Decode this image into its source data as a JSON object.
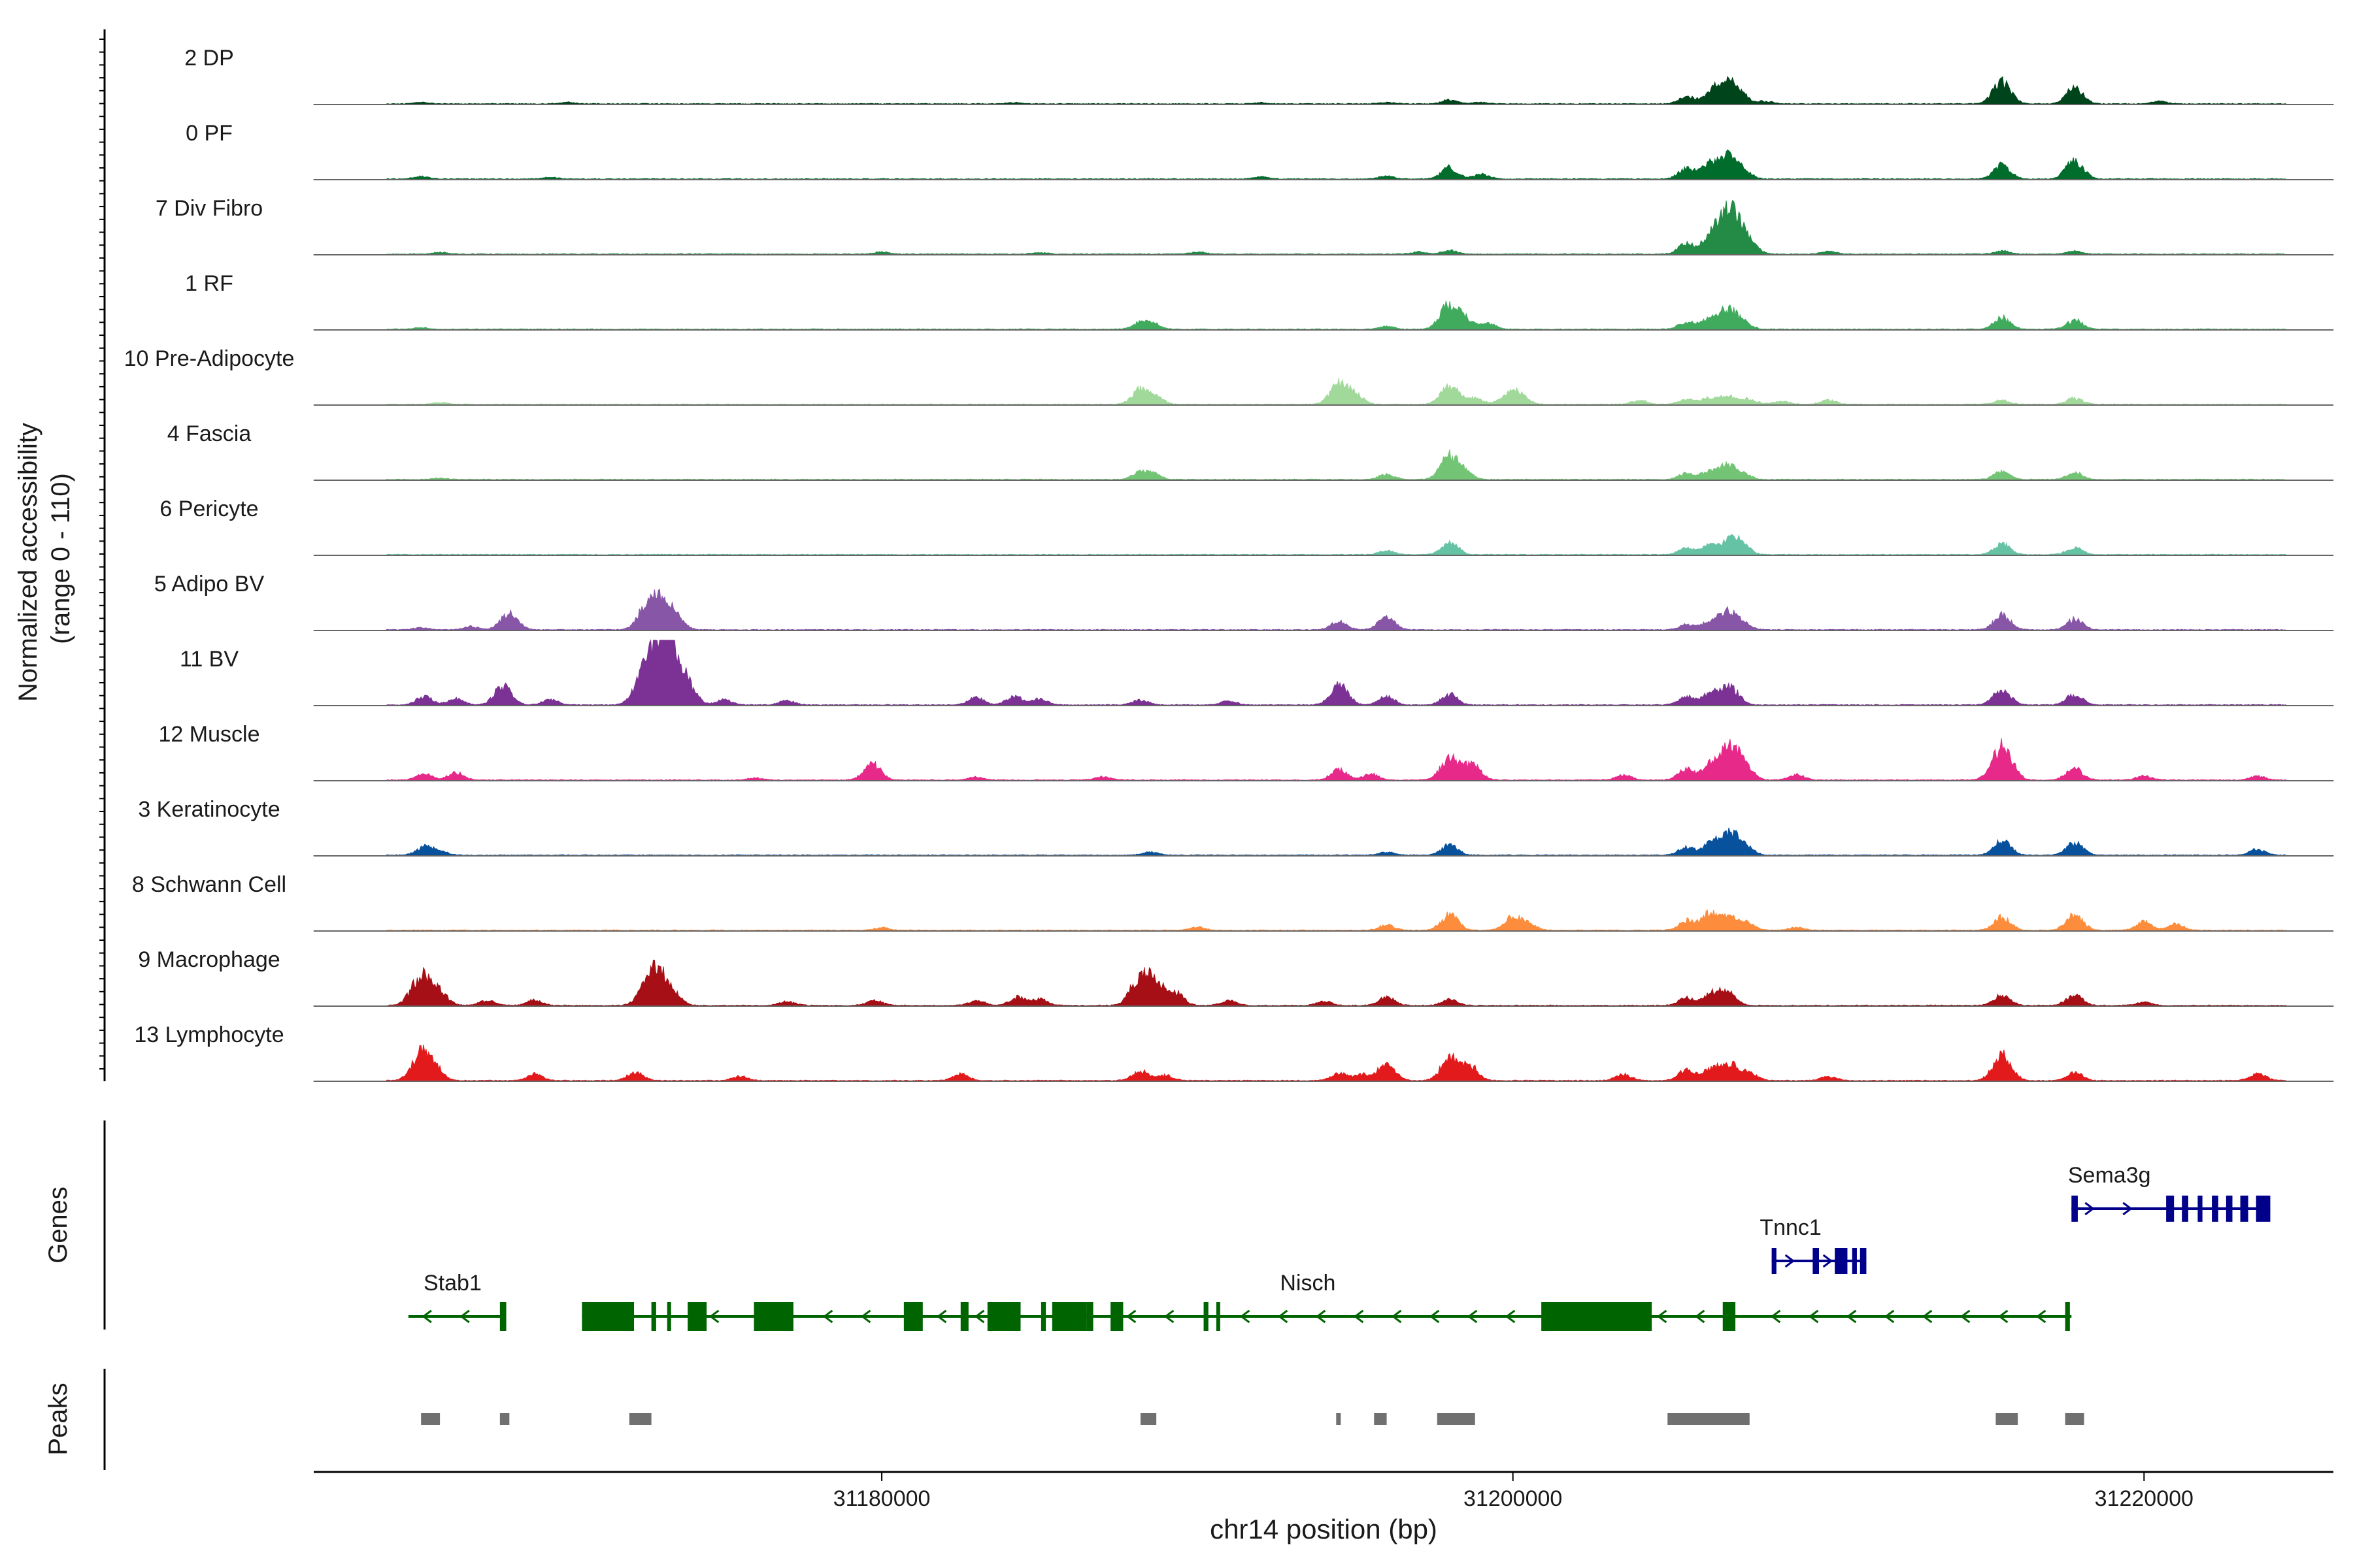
{
  "chart_data": {
    "type": "area",
    "x_axis": {
      "label": "chr14 position (bp)",
      "range": [
        31162000,
        31226000
      ],
      "ticks": [
        31180000,
        31200000,
        31220000
      ],
      "tick_labels": [
        "31180000",
        "31200000",
        "31220000"
      ]
    },
    "y_axis": {
      "label_line1": "Normalized accessibility",
      "label_line2": "(range 0 - 110)",
      "range": [
        0,
        110
      ]
    },
    "genes_label": "Genes",
    "peaks_label": "Peaks",
    "tracks": [
      {
        "name": "2 DP",
        "color": "#00441b",
        "peaks": [
          [
            31165400,
            0.03
          ],
          [
            31170000,
            0.03
          ],
          [
            31184200,
            0.02
          ],
          [
            31192000,
            0.02
          ],
          [
            31196000,
            0.03
          ],
          [
            31198000,
            0.08
          ],
          [
            31199000,
            0.03
          ],
          [
            31205500,
            0.14
          ],
          [
            31206300,
            0.22
          ],
          [
            31206800,
            0.38
          ],
          [
            31207200,
            0.16
          ],
          [
            31208000,
            0.05
          ],
          [
            31215500,
            0.42
          ],
          [
            31217800,
            0.3
          ],
          [
            31220500,
            0.05
          ]
        ]
      },
      {
        "name": "0 PF",
        "color": "#006d2c",
        "peaks": [
          [
            31165400,
            0.05
          ],
          [
            31169500,
            0.03
          ],
          [
            31192000,
            0.04
          ],
          [
            31196000,
            0.06
          ],
          [
            31198000,
            0.22
          ],
          [
            31199000,
            0.1
          ],
          [
            31205500,
            0.2
          ],
          [
            31206200,
            0.25
          ],
          [
            31206800,
            0.45
          ],
          [
            31207300,
            0.15
          ],
          [
            31215500,
            0.26
          ],
          [
            31217800,
            0.35
          ]
        ]
      },
      {
        "name": "7 Div Fibro",
        "color": "#238b45",
        "peaks": [
          [
            31166000,
            0.03
          ],
          [
            31180000,
            0.04
          ],
          [
            31185000,
            0.03
          ],
          [
            31190000,
            0.04
          ],
          [
            31197000,
            0.04
          ],
          [
            31198000,
            0.07
          ],
          [
            31205500,
            0.2
          ],
          [
            31206300,
            0.35
          ],
          [
            31206900,
            0.85
          ],
          [
            31207500,
            0.2
          ],
          [
            31210000,
            0.05
          ],
          [
            31215500,
            0.06
          ],
          [
            31217800,
            0.06
          ]
        ]
      },
      {
        "name": "1 RF",
        "color": "#41ab5d",
        "peaks": [
          [
            31165400,
            0.03
          ],
          [
            31188200,
            0.12
          ],
          [
            31188600,
            0.1
          ],
          [
            31196000,
            0.05
          ],
          [
            31198000,
            0.48
          ],
          [
            31198500,
            0.16
          ],
          [
            31199200,
            0.12
          ],
          [
            31205500,
            0.14
          ],
          [
            31206200,
            0.18
          ],
          [
            31206800,
            0.38
          ],
          [
            31207300,
            0.12
          ],
          [
            31215500,
            0.22
          ],
          [
            31217800,
            0.18
          ]
        ]
      },
      {
        "name": "10 Pre-Adipocyte",
        "color": "#a1d99b",
        "peaks": [
          [
            31166000,
            0.04
          ],
          [
            31188200,
            0.28
          ],
          [
            31188700,
            0.12
          ],
          [
            31194500,
            0.4
          ],
          [
            31195000,
            0.18
          ],
          [
            31198000,
            0.38
          ],
          [
            31198800,
            0.12
          ],
          [
            31199800,
            0.15
          ],
          [
            31200200,
            0.2
          ],
          [
            31204000,
            0.08
          ],
          [
            31205500,
            0.1
          ],
          [
            31206200,
            0.12
          ],
          [
            31206800,
            0.16
          ],
          [
            31207500,
            0.1
          ],
          [
            31208500,
            0.06
          ],
          [
            31210000,
            0.08
          ],
          [
            31215500,
            0.08
          ],
          [
            31217800,
            0.12
          ]
        ]
      },
      {
        "name": "4 Fascia",
        "color": "#74c476",
        "peaks": [
          [
            31166000,
            0.03
          ],
          [
            31188200,
            0.15
          ],
          [
            31188600,
            0.1
          ],
          [
            31196000,
            0.1
          ],
          [
            31198000,
            0.45
          ],
          [
            31198500,
            0.12
          ],
          [
            31205500,
            0.12
          ],
          [
            31206200,
            0.14
          ],
          [
            31206800,
            0.28
          ],
          [
            31207300,
            0.1
          ],
          [
            31215500,
            0.16
          ],
          [
            31217800,
            0.14
          ]
        ]
      },
      {
        "name": "6 Pericyte",
        "color": "#66c2a4",
        "peaks": [
          [
            31196000,
            0.08
          ],
          [
            31198000,
            0.24
          ],
          [
            31205500,
            0.12
          ],
          [
            31206200,
            0.18
          ],
          [
            31206900,
            0.3
          ],
          [
            31207300,
            0.14
          ],
          [
            31215500,
            0.2
          ],
          [
            31217800,
            0.14
          ]
        ]
      },
      {
        "name": "5 Adipo BV",
        "color": "#8856a7",
        "peaks": [
          [
            31165400,
            0.04
          ],
          [
            31167000,
            0.06
          ],
          [
            31168200,
            0.32
          ],
          [
            31172500,
            0.34
          ],
          [
            31173000,
            0.6
          ],
          [
            31173500,
            0.2
          ],
          [
            31194500,
            0.16
          ],
          [
            31196000,
            0.24
          ],
          [
            31205500,
            0.1
          ],
          [
            31206200,
            0.14
          ],
          [
            31206800,
            0.35
          ],
          [
            31207300,
            0.12
          ],
          [
            31215500,
            0.28
          ],
          [
            31217800,
            0.2
          ]
        ]
      },
      {
        "name": "11 BV",
        "color": "#7b3294",
        "peaks": [
          [
            31165500,
            0.16
          ],
          [
            31166500,
            0.12
          ],
          [
            31168000,
            0.36
          ],
          [
            31169500,
            0.1
          ],
          [
            31172400,
            0.4
          ],
          [
            31172900,
            0.98
          ],
          [
            31173300,
            0.7
          ],
          [
            31173800,
            0.4
          ],
          [
            31175000,
            0.1
          ],
          [
            31177000,
            0.08
          ],
          [
            31183000,
            0.14
          ],
          [
            31184200,
            0.16
          ],
          [
            31185000,
            0.12
          ],
          [
            31188200,
            0.1
          ],
          [
            31191000,
            0.08
          ],
          [
            31194500,
            0.38
          ],
          [
            31196000,
            0.16
          ],
          [
            31198000,
            0.2
          ],
          [
            31205500,
            0.16
          ],
          [
            31206300,
            0.26
          ],
          [
            31206900,
            0.32
          ],
          [
            31215500,
            0.3
          ],
          [
            31217800,
            0.2
          ]
        ]
      },
      {
        "name": "12 Muscle",
        "color": "#e7298a",
        "peaks": [
          [
            31165500,
            0.12
          ],
          [
            31166500,
            0.14
          ],
          [
            31176000,
            0.04
          ],
          [
            31179700,
            0.3
          ],
          [
            31183000,
            0.06
          ],
          [
            31187000,
            0.06
          ],
          [
            31194500,
            0.2
          ],
          [
            31195500,
            0.12
          ],
          [
            31198000,
            0.42
          ],
          [
            31198700,
            0.3
          ],
          [
            31203500,
            0.1
          ],
          [
            31205500,
            0.22
          ],
          [
            31206300,
            0.28
          ],
          [
            31206900,
            0.62
          ],
          [
            31207400,
            0.18
          ],
          [
            31209000,
            0.1
          ],
          [
            31215500,
            0.65
          ],
          [
            31217800,
            0.22
          ],
          [
            31220000,
            0.08
          ],
          [
            31223600,
            0.08
          ]
        ]
      },
      {
        "name": "3 Keratinocyte",
        "color": "#08519c",
        "peaks": [
          [
            31165500,
            0.16
          ],
          [
            31166000,
            0.08
          ],
          [
            31188500,
            0.06
          ],
          [
            31196000,
            0.06
          ],
          [
            31198000,
            0.2
          ],
          [
            31205500,
            0.16
          ],
          [
            31206300,
            0.24
          ],
          [
            31206900,
            0.4
          ],
          [
            31207400,
            0.14
          ],
          [
            31215500,
            0.28
          ],
          [
            31217800,
            0.24
          ],
          [
            31223600,
            0.12
          ]
        ]
      },
      {
        "name": "8 Schwann Cell",
        "color": "#fd8d3c",
        "peaks": [
          [
            31180000,
            0.05
          ],
          [
            31190000,
            0.06
          ],
          [
            31196000,
            0.1
          ],
          [
            31198000,
            0.3
          ],
          [
            31200000,
            0.26
          ],
          [
            31200500,
            0.12
          ],
          [
            31205500,
            0.18
          ],
          [
            31206200,
            0.3
          ],
          [
            31206800,
            0.28
          ],
          [
            31207400,
            0.16
          ],
          [
            31209000,
            0.06
          ],
          [
            31215500,
            0.26
          ],
          [
            31217800,
            0.3
          ],
          [
            31220000,
            0.16
          ],
          [
            31221000,
            0.12
          ]
        ]
      },
      {
        "name": "9 Macrophage",
        "color": "#a50f15",
        "peaks": [
          [
            31165400,
            0.58
          ],
          [
            31166000,
            0.24
          ],
          [
            31167500,
            0.1
          ],
          [
            31169000,
            0.1
          ],
          [
            31172500,
            0.25
          ],
          [
            31172900,
            0.62
          ],
          [
            31173400,
            0.18
          ],
          [
            31177000,
            0.08
          ],
          [
            31179800,
            0.1
          ],
          [
            31183000,
            0.1
          ],
          [
            31184300,
            0.16
          ],
          [
            31185000,
            0.12
          ],
          [
            31188200,
            0.55
          ],
          [
            31188700,
            0.34
          ],
          [
            31189300,
            0.24
          ],
          [
            31191000,
            0.1
          ],
          [
            31194000,
            0.08
          ],
          [
            31196000,
            0.16
          ],
          [
            31198000,
            0.12
          ],
          [
            31205500,
            0.14
          ],
          [
            31206300,
            0.22
          ],
          [
            31206800,
            0.26
          ],
          [
            31215500,
            0.2
          ],
          [
            31217800,
            0.2
          ],
          [
            31220000,
            0.06
          ]
        ]
      },
      {
        "name": "13 Lymphocyte",
        "color": "#e31a1c",
        "peaks": [
          [
            31165400,
            0.5
          ],
          [
            31165800,
            0.24
          ],
          [
            31169000,
            0.12
          ],
          [
            31172200,
            0.16
          ],
          [
            31175500,
            0.08
          ],
          [
            31182500,
            0.12
          ],
          [
            31188200,
            0.18
          ],
          [
            31189000,
            0.1
          ],
          [
            31194500,
            0.14
          ],
          [
            31195200,
            0.12
          ],
          [
            31196000,
            0.32
          ],
          [
            31198000,
            0.42
          ],
          [
            31198600,
            0.3
          ],
          [
            31203500,
            0.12
          ],
          [
            31205500,
            0.2
          ],
          [
            31206300,
            0.24
          ],
          [
            31206900,
            0.3
          ],
          [
            31207500,
            0.14
          ],
          [
            31210000,
            0.08
          ],
          [
            31215500,
            0.48
          ],
          [
            31217800,
            0.16
          ],
          [
            31223600,
            0.14
          ]
        ]
      }
    ],
    "genes": [
      {
        "name": "Stab1",
        "strand": "-",
        "color": "#006400",
        "start": 31165000,
        "end": 31168100,
        "label_at": 31166400,
        "row": 0,
        "exons": [
          [
            31167900,
            31168100
          ]
        ]
      },
      {
        "name": "Nisch",
        "strand": "-",
        "color": "#006400",
        "start": 31170500,
        "end": 31217700,
        "label_at": 31193500,
        "row": 0,
        "exons": [
          [
            31170500,
            31172150
          ],
          [
            31172700,
            31172850
          ],
          [
            31173200,
            31173320
          ],
          [
            31173850,
            31174450
          ],
          [
            31175950,
            31177200
          ],
          [
            31180700,
            31181300
          ],
          [
            31182500,
            31182750
          ],
          [
            31183350,
            31184400
          ],
          [
            31185050,
            31185200
          ],
          [
            31185400,
            31186500
          ],
          [
            31186500,
            31186700
          ],
          [
            31187250,
            31187650
          ],
          [
            31190200,
            31190350
          ],
          [
            31190600,
            31190700
          ],
          [
            31200900,
            31204400
          ],
          [
            31206650,
            31207050
          ],
          [
            31217500,
            31217650
          ]
        ]
      },
      {
        "name": "Tnnc1",
        "strand": "+",
        "color": "#00008b",
        "start": 31208200,
        "end": 31211200,
        "label_at": 31208800,
        "row": 1,
        "exons": [
          [
            31208200,
            31208350
          ],
          [
            31209500,
            31209700
          ],
          [
            31210200,
            31210600
          ],
          [
            31210750,
            31210900
          ],
          [
            31211000,
            31211200
          ]
        ]
      },
      {
        "name": "Sema3g",
        "strand": "+",
        "color": "#00008b",
        "start": 31217700,
        "end": 31224000,
        "label_at": 31218900,
        "row": 2,
        "exons": [
          [
            31217700,
            31217900
          ],
          [
            31220700,
            31220950
          ],
          [
            31221200,
            31221400
          ],
          [
            31221700,
            31221850
          ],
          [
            31222150,
            31222350
          ],
          [
            31222600,
            31222800
          ],
          [
            31223050,
            31223300
          ],
          [
            31223550,
            31224000
          ]
        ]
      }
    ],
    "peak_regions": [
      [
        31165400,
        31166000
      ],
      [
        31167900,
        31168200
      ],
      [
        31172000,
        31172700
      ],
      [
        31188200,
        31188700
      ],
      [
        31194400,
        31194500
      ],
      [
        31195600,
        31196000
      ],
      [
        31197600,
        31198800
      ],
      [
        31204900,
        31207500
      ],
      [
        31215300,
        31216000
      ],
      [
        31217500,
        31218100
      ]
    ]
  }
}
